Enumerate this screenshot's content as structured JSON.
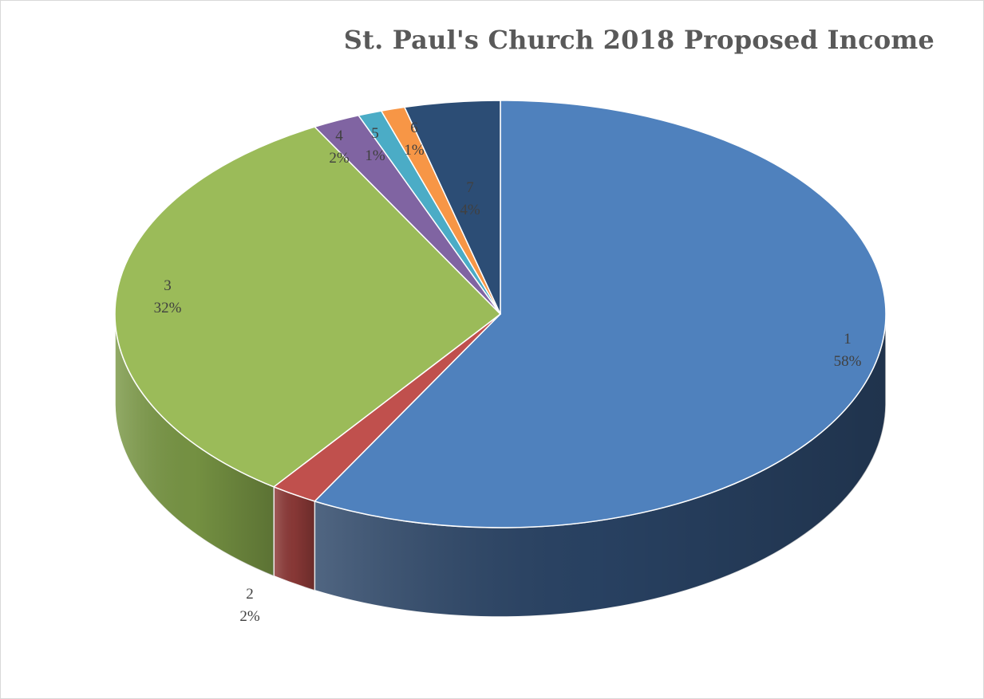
{
  "chart_data": {
    "type": "pie",
    "title": "St. Paul's Church 2018 Proposed Income",
    "three_d": true,
    "categories": [
      "1",
      "2",
      "3",
      "4",
      "5",
      "6",
      "7"
    ],
    "values": [
      58,
      2,
      32,
      2,
      1,
      1,
      4
    ],
    "labels": [
      "58%",
      "2%",
      "32%",
      "2%",
      "1%",
      "1%",
      "4%"
    ],
    "colors": [
      "#4F81BD",
      "#C0504D",
      "#9BBB59",
      "#8064A2",
      "#4BACC6",
      "#F79646",
      "#2C4D75"
    ],
    "side_colors": [
      "#2A4466",
      "#8E3A38",
      "#7A9845",
      "#5E4A7A",
      "#37899E",
      "#C4752F",
      "#1F3554"
    ],
    "legend": "none"
  }
}
